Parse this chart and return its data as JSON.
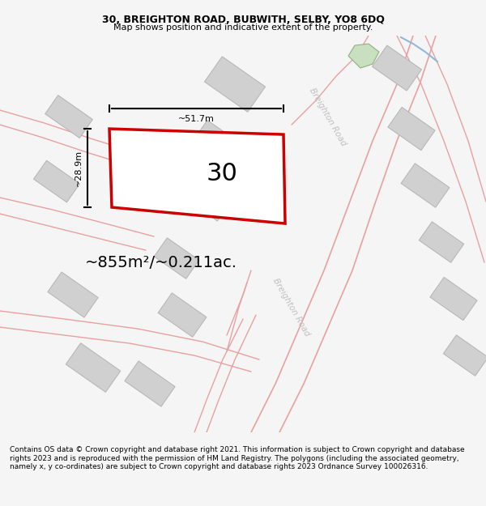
{
  "title_line1": "30, BREIGHTON ROAD, BUBWITH, SELBY, YO8 6DQ",
  "title_line2": "Map shows position and indicative extent of the property.",
  "footer_text": "Contains OS data © Crown copyright and database right 2021. This information is subject to Crown copyright and database rights 2023 and is reproduced with the permission of HM Land Registry. The polygons (including the associated geometry, namely x, y co-ordinates) are subject to Crown copyright and database rights 2023 Ordnance Survey 100026316.",
  "area_label": "~855m²/~0.211ac.",
  "width_label": "~51.7m",
  "height_label": "~28.9m",
  "plot_number": "30",
  "bg_color": "#f5f5f5",
  "map_bg": "#ffffff",
  "road_line_color": "#e8a0a0",
  "building_color": "#d0d0d0",
  "building_edge": "#b8b8b8",
  "plot_fill": "#ffffff",
  "plot_edge": "#cc0000",
  "green_patch_color": "#c8dfc0",
  "blue_line_color": "#90b8d8",
  "title_fontsize": 9,
  "subtitle_fontsize": 8,
  "footer_fontsize": 6.5,
  "dim_fontsize": 8,
  "area_fontsize": 14,
  "plot_num_fontsize": 22,
  "road_label_color": "#c0c0c0",
  "road_label_fontsize": 7.5
}
